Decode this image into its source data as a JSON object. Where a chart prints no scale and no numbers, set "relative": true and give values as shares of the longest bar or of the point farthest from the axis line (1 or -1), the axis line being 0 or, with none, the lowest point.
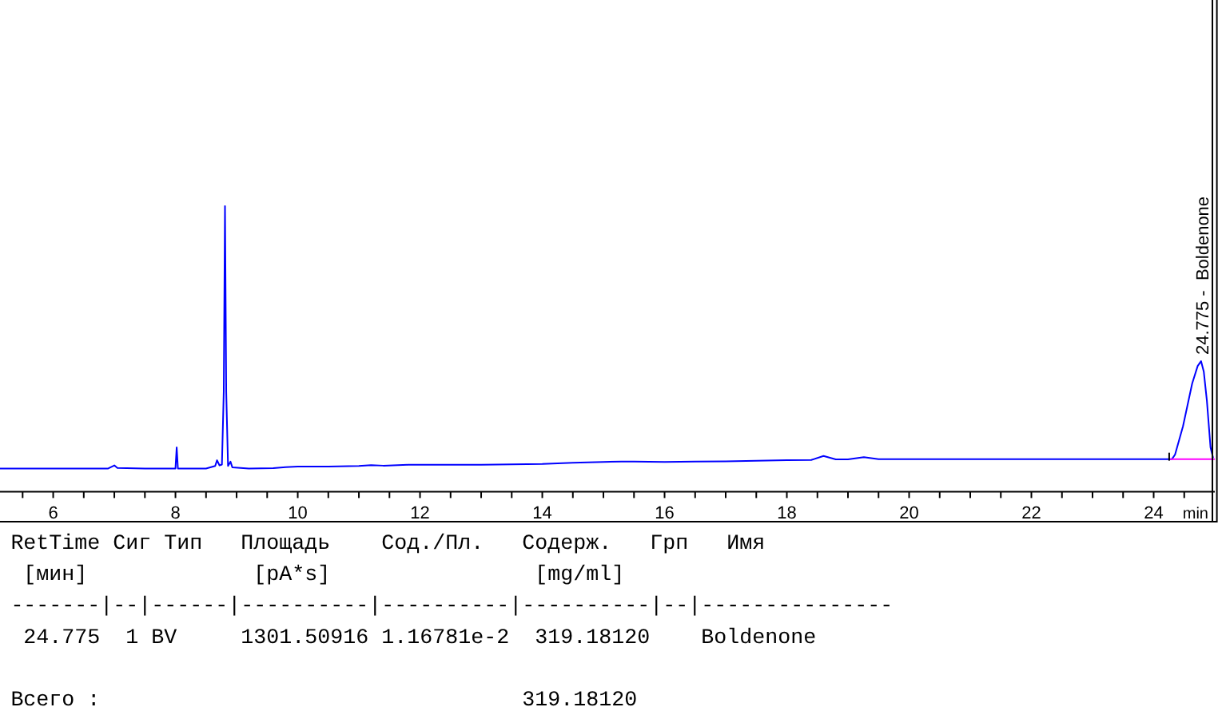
{
  "chart_data": {
    "type": "line",
    "relative": true,
    "xlabel": "min",
    "xlim": [
      5.13,
      25.0
    ],
    "xticks": [
      {
        "value": 5.5,
        "label": null
      },
      6,
      {
        "value": 6.5,
        "label": null
      },
      {
        "value": 7,
        "label": null
      },
      {
        "value": 7.5,
        "label": null
      },
      8,
      {
        "value": 8.5,
        "label": null
      },
      {
        "value": 9,
        "label": null
      },
      {
        "value": 9.5,
        "label": null
      },
      10,
      {
        "value": 10.5,
        "label": null
      },
      {
        "value": 11,
        "label": null
      },
      {
        "value": 11.5,
        "label": null
      },
      12,
      {
        "value": 12.5,
        "label": null
      },
      {
        "value": 13,
        "label": null
      },
      {
        "value": 13.5,
        "label": null
      },
      14,
      {
        "value": 14.5,
        "label": null
      },
      {
        "value": 15,
        "label": null
      },
      {
        "value": 15.5,
        "label": null
      },
      16,
      {
        "value": 16.5,
        "label": null
      },
      {
        "value": 17,
        "label": null
      },
      {
        "value": 17.5,
        "label": null
      },
      18,
      {
        "value": 18.5,
        "label": null
      },
      {
        "value": 19,
        "label": null
      },
      {
        "value": 19.5,
        "label": null
      },
      20,
      {
        "value": 20.5,
        "label": null
      },
      {
        "value": 21,
        "label": null
      },
      {
        "value": 21.5,
        "label": null
      },
      22,
      {
        "value": 22.5,
        "label": null
      },
      {
        "value": 23,
        "label": null
      },
      {
        "value": 23.5,
        "label": null
      },
      24,
      {
        "value": 24.5,
        "label": null
      }
    ],
    "series": [
      {
        "color": "#0000ff",
        "x": [
          5.13,
          6.0,
          6.9,
          7.0,
          7.05,
          7.5,
          8.0,
          8.02,
          8.04,
          8.5,
          8.65,
          8.68,
          8.72,
          8.76,
          8.79,
          8.81,
          8.83,
          8.86,
          8.9,
          8.93,
          9.2,
          9.6,
          9.8,
          10.0,
          10.5,
          11.0,
          11.2,
          11.4,
          11.8,
          12.5,
          13.0,
          14.0,
          14.5,
          15.0,
          15.3,
          15.5,
          16.0,
          16.5,
          17.0,
          17.5,
          18.0,
          18.4,
          18.6,
          18.8,
          19.0,
          19.26,
          19.5,
          20.0,
          22.0,
          24.0,
          24.3,
          24.35,
          24.48,
          24.63,
          24.72,
          24.775,
          24.82,
          24.87,
          24.93,
          24.97
        ],
        "values": [
          0.081,
          0.081,
          0.081,
          0.092,
          0.083,
          0.081,
          0.081,
          0.155,
          0.081,
          0.081,
          0.09,
          0.11,
          0.092,
          0.095,
          0.35,
          1.0,
          0.35,
          0.09,
          0.105,
          0.085,
          0.081,
          0.082,
          0.086,
          0.088,
          0.088,
          0.09,
          0.093,
          0.091,
          0.094,
          0.094,
          0.094,
          0.097,
          0.101,
          0.104,
          0.105,
          0.105,
          0.104,
          0.105,
          0.106,
          0.108,
          0.11,
          0.111,
          0.125,
          0.113,
          0.113,
          0.121,
          0.114,
          0.114,
          0.114,
          0.114,
          0.114,
          0.13,
          0.229,
          0.379,
          0.44,
          0.457,
          0.42,
          0.32,
          0.155,
          0.12
        ]
      },
      {
        "color": "#ff00ff",
        "x": [
          24.28,
          24.99
        ],
        "values": [
          0.114,
          0.114
        ]
      }
    ],
    "annotations": [
      {
        "text": "24.775 -  Boldenone",
        "x": 24.775,
        "y": 0.457
      },
      "RetTime Сиг Тип   Площадь    Сод./Пл.   Содерж.   Грп   Имя",
      " [мин]             [pA*s]                [mg/ml]",
      "-------|--|------|----------|----------|----------|--|---------------",
      " 24.775  1 BV     1301.50916 1.16781e-2  319.18120    Boldenone",
      "Всего :                                 319.18120"
    ]
  }
}
